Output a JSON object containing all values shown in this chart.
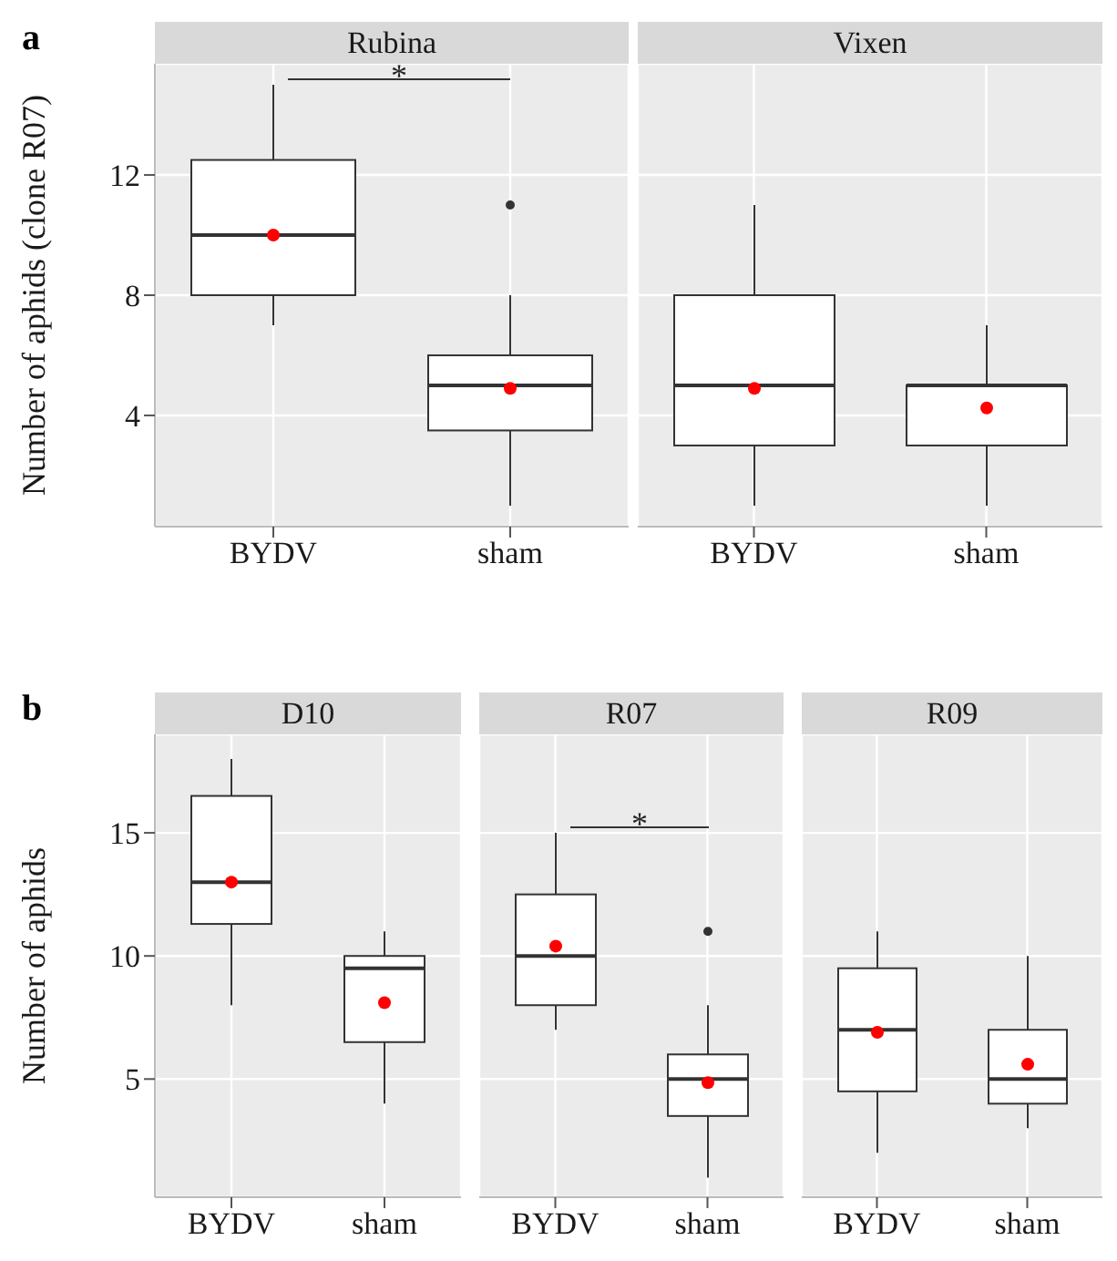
{
  "chart_data": [
    {
      "type": "box",
      "title": "Rubina",
      "ylabel": "Number of aphids (clone R07)",
      "categories": [
        "BYDV",
        "sham"
      ],
      "ylim": [
        0.3,
        15.7
      ],
      "yticks": [
        4,
        8,
        12
      ],
      "grid": true,
      "boxes": [
        {
          "low": 7,
          "q1": 8,
          "median": 10,
          "q3": 12.5,
          "high": 15,
          "mean": 10
        },
        {
          "low": 1,
          "q1": 3.5,
          "median": 5,
          "q3": 6,
          "high": 8,
          "mean": 4.9,
          "outliers": [
            11
          ]
        }
      ],
      "annotations": [
        "a",
        "*"
      ]
    },
    {
      "type": "box",
      "title": "Vixen",
      "categories": [
        "BYDV",
        "sham"
      ],
      "ylim": [
        0.3,
        15.7
      ],
      "yticks": [
        4,
        8,
        12
      ],
      "grid": true,
      "tick_labels": "x",
      "boxes": [
        {
          "low": 1,
          "q1": 3,
          "median": 5,
          "q3": 8,
          "high": 11,
          "mean": 4.9
        },
        {
          "low": 1,
          "q1": 3,
          "median": 5,
          "q3": 5,
          "high": 7,
          "mean": 4.25
        }
      ]
    },
    {
      "type": "box",
      "title": "D10",
      "ylabel": "Number of aphids",
      "categories": [
        "BYDV",
        "sham"
      ],
      "ylim": [
        0.2,
        19
      ],
      "yticks": [
        5,
        10,
        15
      ],
      "grid": true,
      "boxes": [
        {
          "low": 8,
          "q1": 11.3,
          "median": 13,
          "q3": 16.5,
          "high": 18,
          "mean": 13
        },
        {
          "low": 4,
          "q1": 6.5,
          "median": 9.5,
          "q3": 10,
          "high": 11,
          "mean": 8.1
        }
      ],
      "annotations": [
        "b"
      ]
    },
    {
      "type": "box",
      "title": "R07",
      "categories": [
        "BYDV",
        "sham"
      ],
      "ylim": [
        0.2,
        19
      ],
      "yticks": [
        5,
        10,
        15
      ],
      "grid": true,
      "tick_labels": "x",
      "boxes": [
        {
          "low": 7,
          "q1": 8,
          "median": 10,
          "q3": 12.5,
          "high": 15,
          "mean": 10.4
        },
        {
          "low": 1,
          "q1": 3.5,
          "median": 5,
          "q3": 6,
          "high": 8,
          "mean": 4.85,
          "outliers": [
            11
          ]
        }
      ],
      "annotations": [
        "*"
      ]
    },
    {
      "type": "box",
      "title": "R09",
      "categories": [
        "BYDV",
        "sham"
      ],
      "ylim": [
        0.2,
        19
      ],
      "yticks": [
        5,
        10,
        15
      ],
      "grid": true,
      "tick_labels": "x",
      "boxes": [
        {
          "low": 2,
          "q1": 4.5,
          "median": 7,
          "q3": 9.5,
          "high": 11,
          "mean": 6.9
        },
        {
          "low": 3,
          "q1": 4,
          "median": 5,
          "q3": 7,
          "high": 10,
          "mean": 5.6
        }
      ]
    }
  ]
}
